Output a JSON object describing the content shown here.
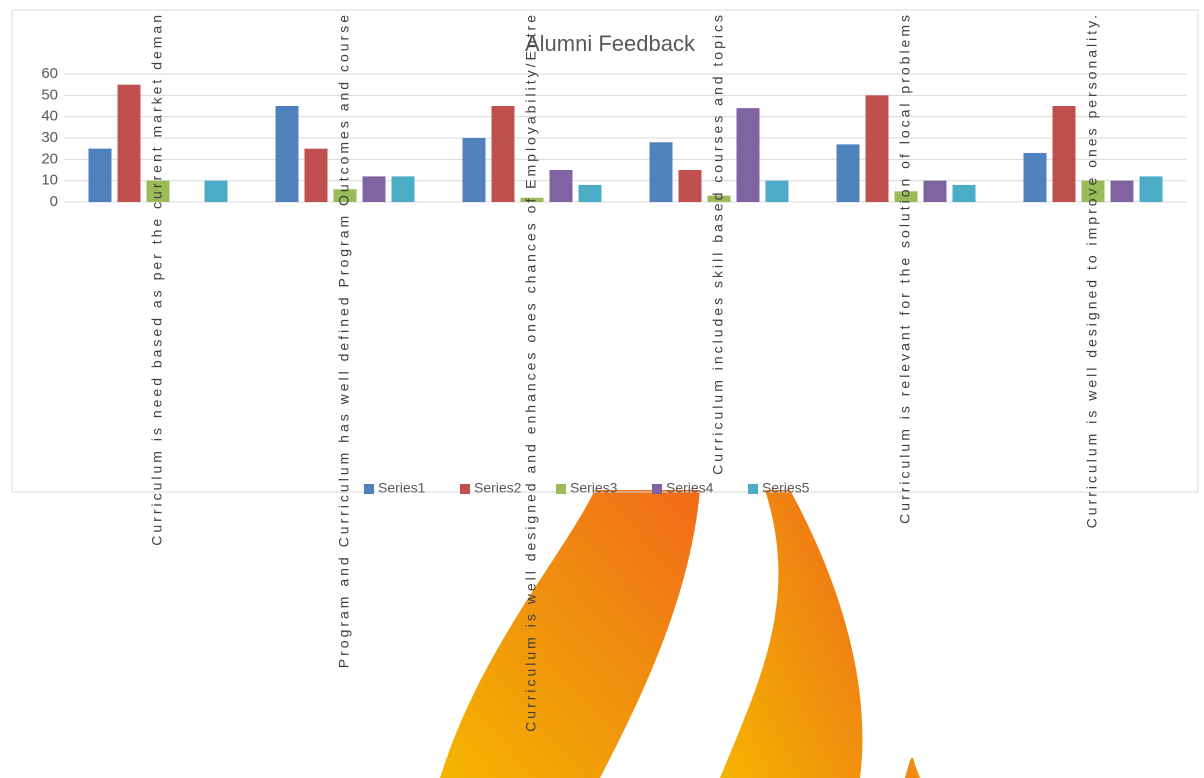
{
  "chart_data": {
    "type": "bar",
    "title": "Alumni Feedback",
    "categories": [
      "Curriculum  is need based as per the current market deman",
      "Program  and Curriculum  has well defined Program  Outcomes  and course",
      "Curriculum is well designed and enhances ones chances of Employability/Entre",
      "Curriculum  includes skill based courses and topics",
      "Curriculum  is relevant for the solution of local problems",
      "Curriculum  is well designed to improve ones personality."
    ],
    "series": [
      {
        "name": "Series1",
        "color": "#4f81bd",
        "values": [
          25,
          45,
          30,
          28,
          27,
          23
        ]
      },
      {
        "name": "Series2",
        "color": "#c0504d",
        "values": [
          55,
          25,
          45,
          15,
          50,
          45
        ]
      },
      {
        "name": "Series3",
        "color": "#9bbb59",
        "values": [
          10,
          6,
          2,
          3,
          5,
          10
        ]
      },
      {
        "name": "Series4",
        "color": "#8064a2",
        "values": [
          0,
          12,
          15,
          44,
          10,
          10
        ]
      },
      {
        "name": "Series5",
        "color": "#4bacc6",
        "values": [
          10,
          12,
          8,
          10,
          8,
          12
        ]
      }
    ],
    "ylim": [
      0,
      60
    ],
    "yticks": [
      0,
      10,
      20,
      30,
      40,
      50,
      60
    ],
    "grid": true,
    "legend": "bottom"
  }
}
